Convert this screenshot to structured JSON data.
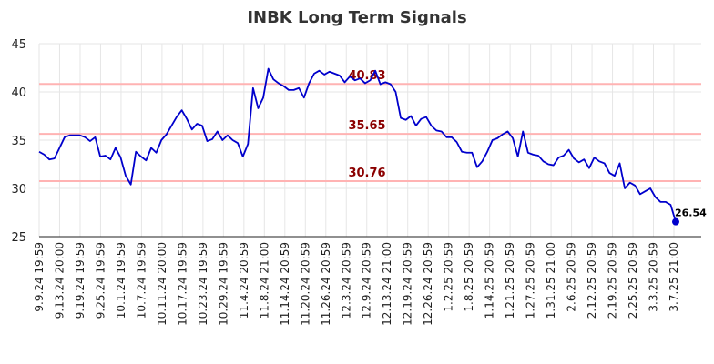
{
  "chart_data": {
    "type": "line",
    "title": "INBK Long Term Signals",
    "ylim": [
      25,
      45
    ],
    "y_ticks": [
      "25",
      "30",
      "35",
      "40",
      "45"
    ],
    "x_ticks": [
      "9.9.24 19:59",
      "9.13.24 20:00",
      "9.19.24 19:59",
      "9.25.24 19:59",
      "10.1.24 19:59",
      "10.7.24 19:59",
      "10.11.24 20:00",
      "10.17.24 19:59",
      "10.23.24 19:59",
      "10.29.24 19:59",
      "11.4.24 20:59",
      "11.8.24 21:00",
      "11.14.24 20:59",
      "11.20.24 20:59",
      "11.26.24 20:59",
      "12.3.24 20:59",
      "12.9.24 20:59",
      "12.13.24 21:00",
      "12.19.24 20:59",
      "12.26.24 20:59",
      "1.2.25 20:59",
      "1.8.25 20:59",
      "1.14.25 20:59",
      "1.21.25 20:59",
      "1.27.25 20:59",
      "1.31.25 21:00",
      "2.6.25 20:59",
      "2.12.25 20:59",
      "2.19.25 20:59",
      "2.25.25 20:59",
      "3.3.25 20:59",
      "3.7.25 21:00"
    ],
    "grid": true,
    "signal_lines": [
      {
        "value": 40.83,
        "label": "40.83"
      },
      {
        "value": 35.65,
        "label": "35.65"
      },
      {
        "value": 30.76,
        "label": "30.76"
      }
    ],
    "series": [
      {
        "color": "#0000cc",
        "values": [
          33.8,
          33.5,
          33.0,
          33.1,
          34.2,
          35.3,
          35.5,
          35.5,
          35.5,
          35.3,
          34.9,
          35.3,
          33.3,
          33.4,
          33.0,
          34.2,
          33.2,
          31.3,
          30.4,
          33.8,
          33.3,
          32.9,
          34.2,
          33.7,
          35.0,
          35.6,
          36.5,
          37.4,
          38.1,
          37.2,
          36.1,
          36.7,
          36.5,
          34.9,
          35.1,
          35.9,
          35.0,
          35.5,
          35.0,
          34.7,
          33.3,
          34.6,
          40.4,
          38.3,
          39.4,
          42.4,
          41.3,
          40.9,
          40.6,
          40.2,
          40.2,
          40.4,
          39.4,
          40.9,
          41.9,
          42.2,
          41.8,
          42.1,
          41.9,
          41.7,
          41.0,
          41.6,
          41.2,
          41.4,
          40.9,
          41.2,
          42.2,
          40.8,
          41.0,
          40.8,
          40.0,
          37.3,
          37.1,
          37.5,
          36.5,
          37.2,
          37.4,
          36.5,
          36.0,
          35.9,
          35.3,
          35.3,
          34.8,
          33.8,
          33.7,
          33.7,
          32.2,
          32.8,
          33.8,
          35.0,
          35.2,
          35.6,
          35.9,
          35.2,
          33.3,
          35.9,
          33.7,
          33.5,
          33.4,
          32.8,
          32.5,
          32.4,
          33.2,
          33.4,
          34.0,
          33.1,
          32.7,
          33.0,
          32.1,
          33.2,
          32.8,
          32.6,
          31.6,
          31.3,
          32.6,
          30.0,
          30.6,
          30.3,
          29.4,
          29.7,
          30.0,
          29.1,
          28.6,
          28.6,
          28.3,
          26.54
        ]
      }
    ],
    "last_value_label": "26.54"
  }
}
